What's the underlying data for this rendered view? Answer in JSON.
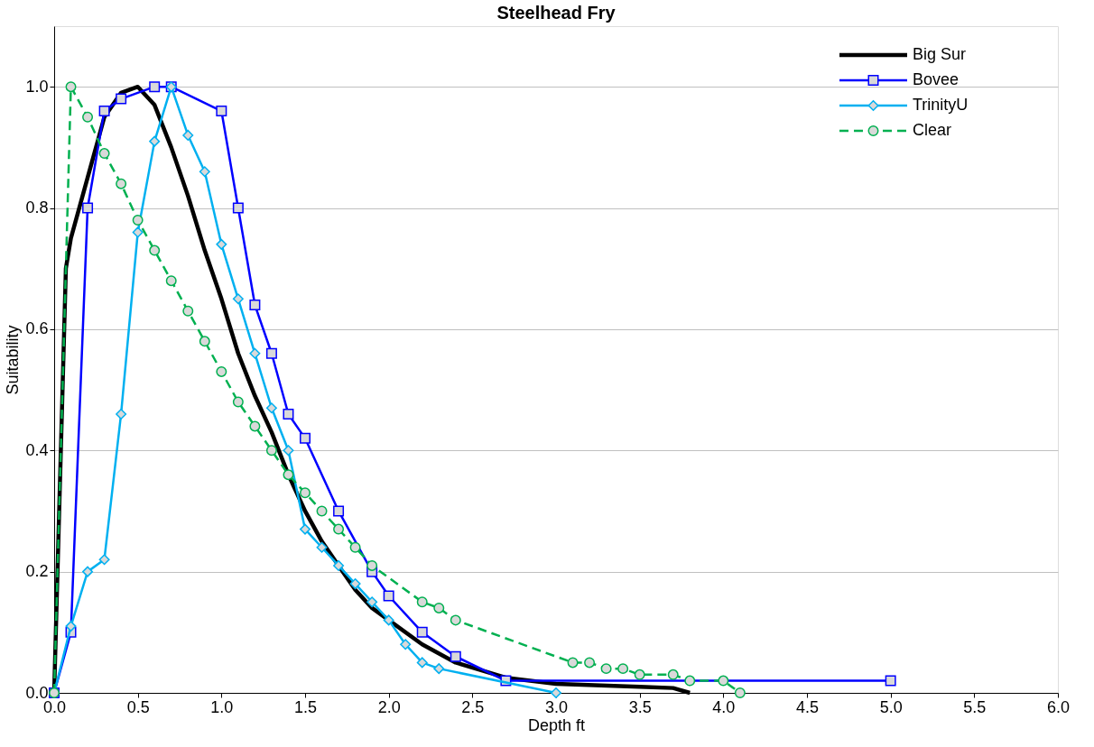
{
  "chart_data": {
    "type": "line",
    "title": "Steelhead Fry",
    "xlabel": "Depth ft",
    "ylabel": "Suitability",
    "xlim": [
      0,
      6
    ],
    "ylim": [
      0,
      1.1
    ],
    "xticks": [
      {
        "value": 0,
        "label": "0.0"
      },
      {
        "value": 0.5,
        "label": "0.5"
      },
      {
        "value": 1,
        "label": "1.0"
      },
      {
        "value": 1.5,
        "label": "1.5"
      },
      {
        "value": 2,
        "label": "2.0"
      },
      {
        "value": 2.5,
        "label": "2.5"
      },
      {
        "value": 3,
        "label": "3.0"
      },
      {
        "value": 3.5,
        "label": "3.5"
      },
      {
        "value": 4,
        "label": "4.0"
      },
      {
        "value": 4.5,
        "label": "4.5"
      },
      {
        "value": 5,
        "label": "5.0"
      },
      {
        "value": 5.5,
        "label": "5.5"
      },
      {
        "value": 6,
        "label": "6.0"
      }
    ],
    "yticks": [
      {
        "value": 0,
        "label": "0.0"
      },
      {
        "value": 0.2,
        "label": "0.2"
      },
      {
        "value": 0.4,
        "label": "0.4"
      },
      {
        "value": 0.6,
        "label": "0.6"
      },
      {
        "value": 0.8,
        "label": "0.8"
      },
      {
        "value": 1,
        "label": "1.0"
      }
    ],
    "grid": "y",
    "legend": "top right",
    "series": [
      {
        "name": "Big Sur",
        "color": "#000000",
        "marker": "none",
        "line_style": "solid",
        "x": [
          0,
          0.07,
          0.1,
          0.2,
          0.3,
          0.4,
          0.5,
          0.6,
          0.7,
          0.8,
          0.9,
          1.0,
          1.1,
          1.2,
          1.3,
          1.4,
          1.5,
          1.6,
          1.7,
          1.8,
          1.9,
          2.0,
          2.2,
          2.4,
          2.7,
          3.0,
          3.5,
          3.7,
          3.8
        ],
        "values": [
          0,
          0.7,
          0.75,
          0.85,
          0.95,
          0.99,
          1.0,
          0.97,
          0.9,
          0.82,
          0.73,
          0.65,
          0.56,
          0.49,
          0.43,
          0.36,
          0.3,
          0.25,
          0.21,
          0.17,
          0.14,
          0.12,
          0.08,
          0.05,
          0.025,
          0.015,
          0.01,
          0.008,
          0.0
        ]
      },
      {
        "name": "Bovee",
        "color": "#0000ff",
        "marker": "square",
        "line_style": "solid",
        "x": [
          0,
          0.1,
          0.2,
          0.3,
          0.4,
          0.6,
          0.7,
          1.0,
          1.1,
          1.2,
          1.3,
          1.4,
          1.5,
          1.7,
          1.9,
          2.0,
          2.2,
          2.4,
          2.7,
          5.0
        ],
        "values": [
          0,
          0.1,
          0.8,
          0.96,
          0.98,
          1.0,
          1.0,
          0.96,
          0.8,
          0.64,
          0.56,
          0.46,
          0.42,
          0.3,
          0.2,
          0.16,
          0.1,
          0.06,
          0.02,
          0.02
        ]
      },
      {
        "name": "TrinityU",
        "color": "#00b0f0",
        "marker": "diamond",
        "line_style": "solid",
        "x": [
          0,
          0.1,
          0.2,
          0.3,
          0.4,
          0.5,
          0.6,
          0.7,
          0.8,
          0.9,
          1.0,
          1.1,
          1.2,
          1.3,
          1.4,
          1.5,
          1.6,
          1.7,
          1.8,
          1.9,
          2.0,
          2.1,
          2.2,
          2.3,
          3.0
        ],
        "values": [
          0,
          0.11,
          0.2,
          0.22,
          0.46,
          0.76,
          0.91,
          1.0,
          0.92,
          0.86,
          0.74,
          0.65,
          0.56,
          0.47,
          0.4,
          0.27,
          0.24,
          0.21,
          0.18,
          0.15,
          0.12,
          0.08,
          0.05,
          0.04,
          0.0
        ]
      },
      {
        "name": "Clear",
        "color": "#00b050",
        "marker": "circle",
        "line_style": "dashed",
        "x": [
          0,
          0.1,
          0.2,
          0.3,
          0.4,
          0.5,
          0.6,
          0.7,
          0.8,
          0.9,
          1.0,
          1.1,
          1.2,
          1.3,
          1.4,
          1.5,
          1.6,
          1.7,
          1.8,
          1.9,
          2.2,
          2.3,
          2.4,
          3.1,
          3.2,
          3.3,
          3.4,
          3.5,
          3.7,
          3.8,
          4.0,
          4.1
        ],
        "values": [
          0,
          1.0,
          0.95,
          0.89,
          0.84,
          0.78,
          0.73,
          0.68,
          0.63,
          0.58,
          0.53,
          0.48,
          0.44,
          0.4,
          0.36,
          0.33,
          0.3,
          0.27,
          0.24,
          0.21,
          0.15,
          0.14,
          0.12,
          0.05,
          0.05,
          0.04,
          0.04,
          0.03,
          0.03,
          0.02,
          0.02,
          0.0
        ]
      }
    ]
  }
}
